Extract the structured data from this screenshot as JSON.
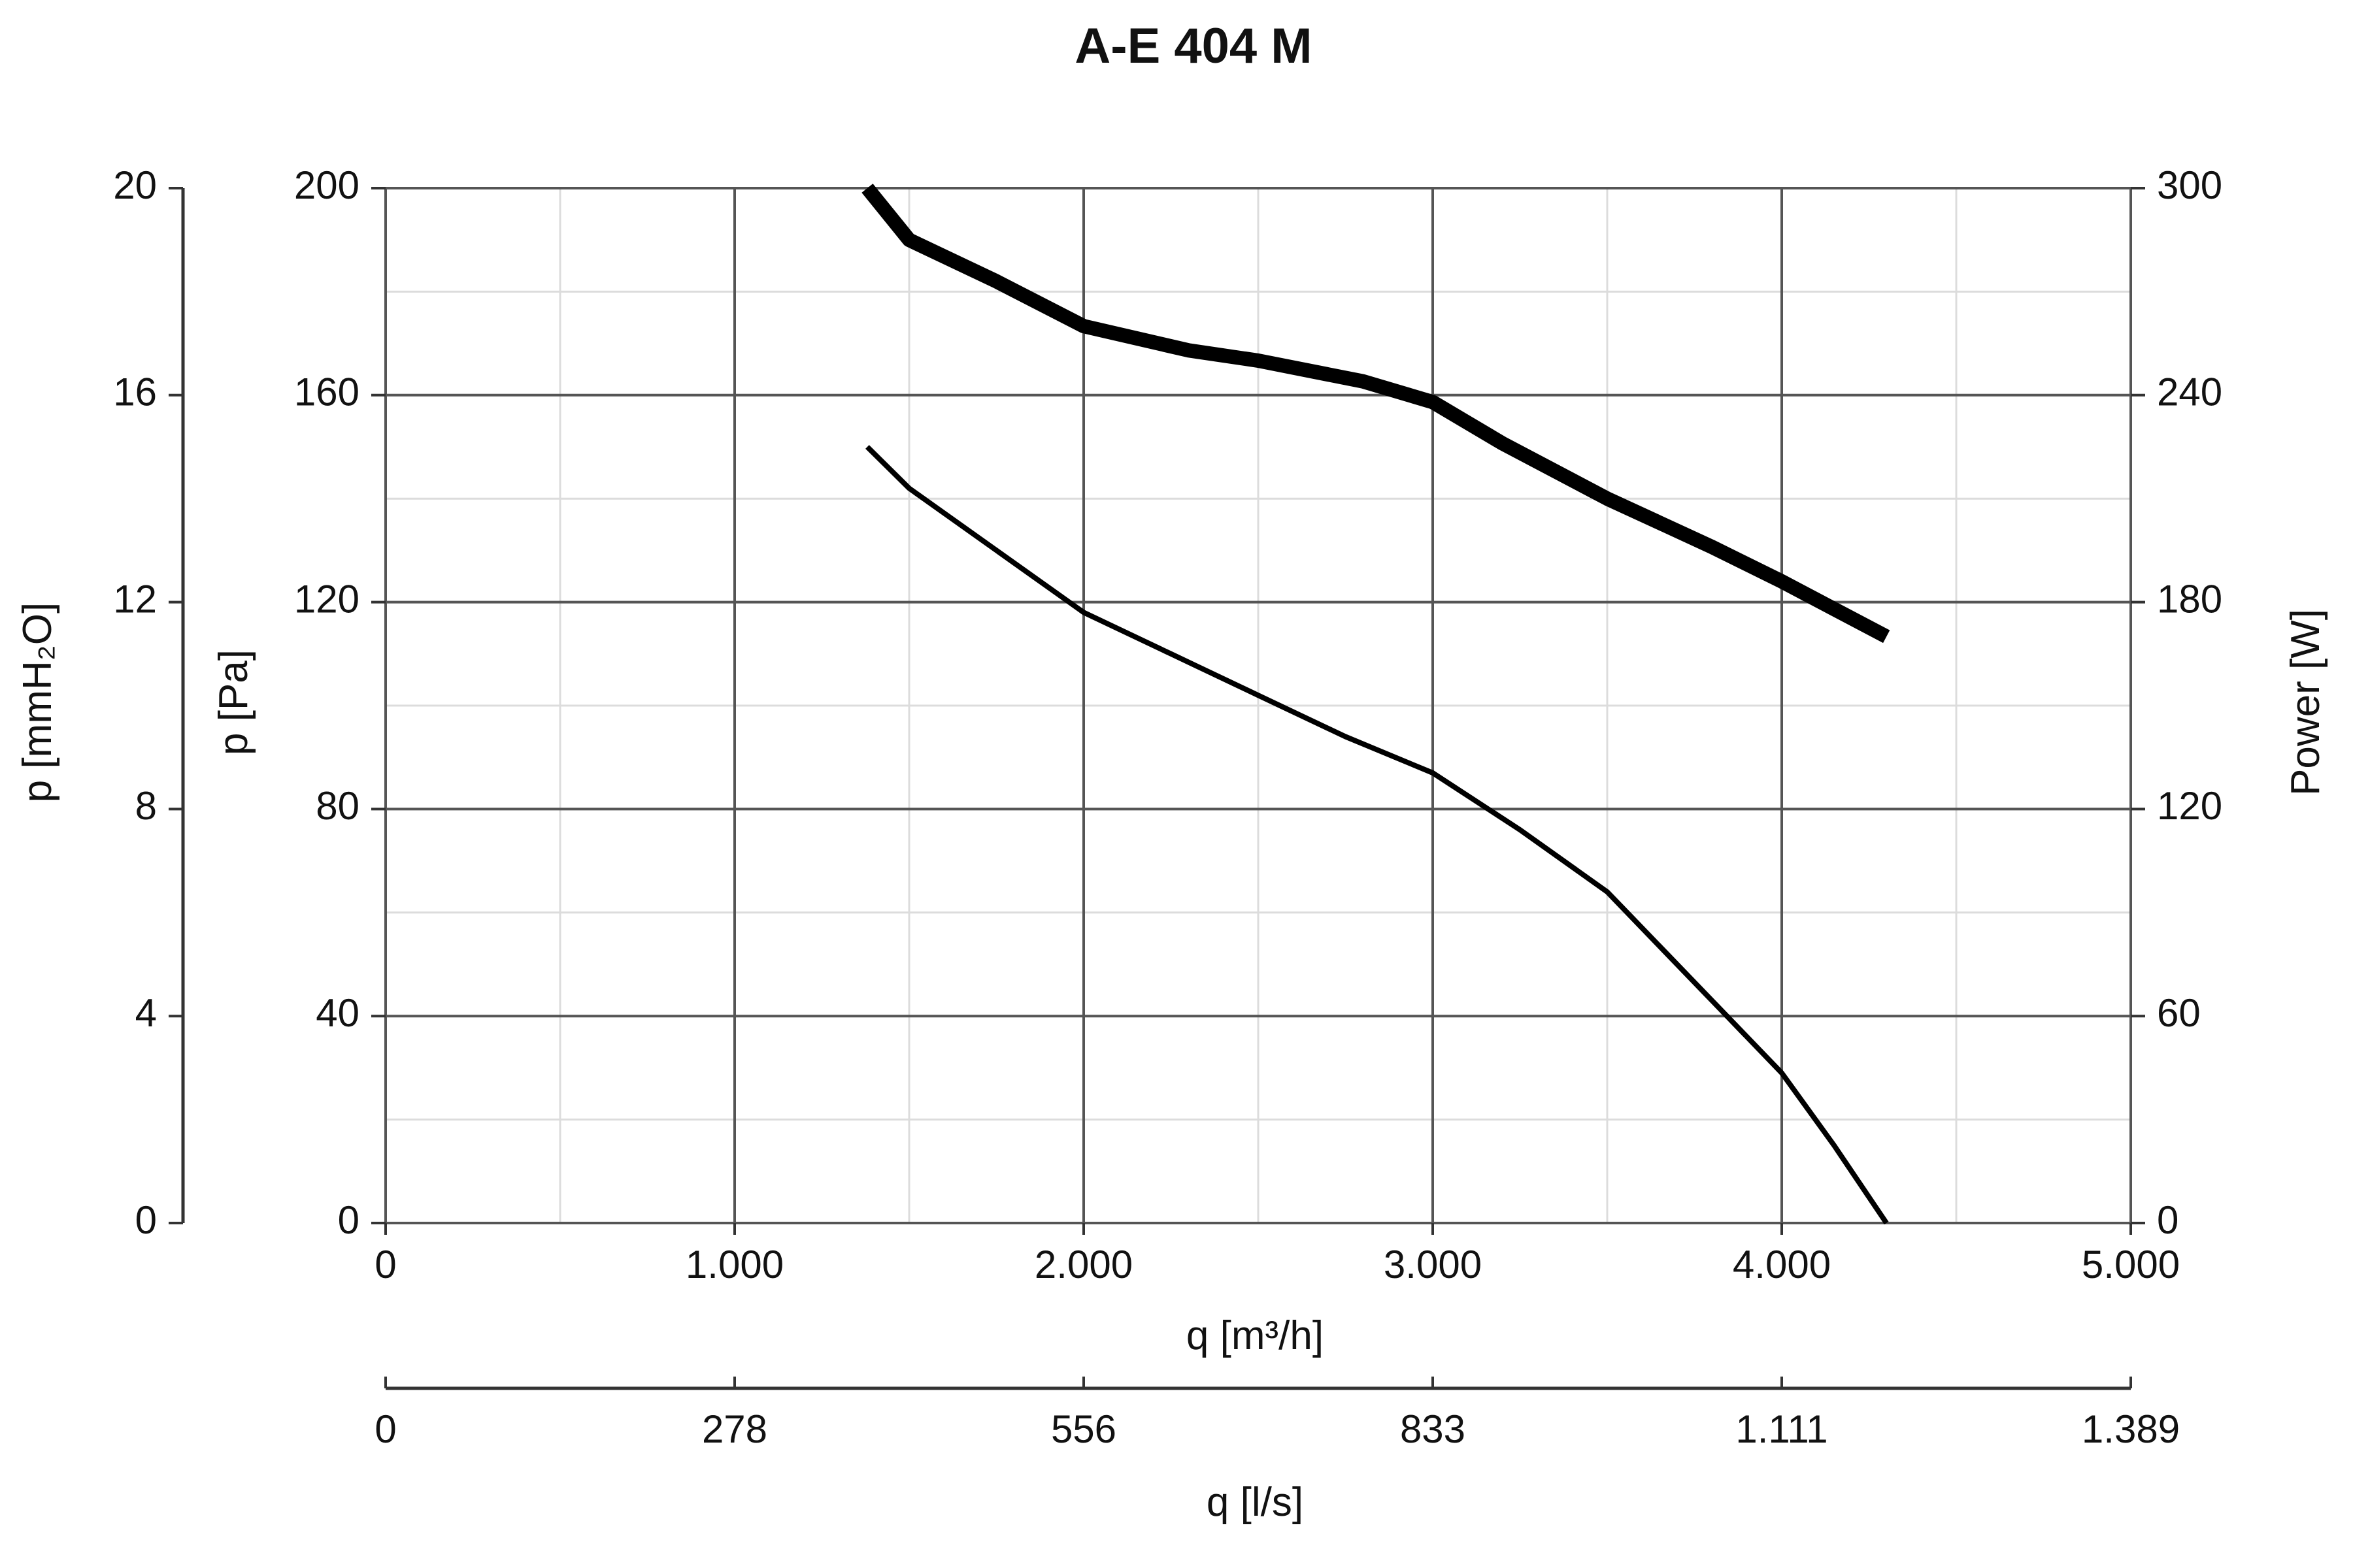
{
  "chart_data": {
    "type": "line",
    "title": "A-E 404 M",
    "x_axis": {
      "label": "q [m³/h]",
      "range": [
        0,
        5000
      ],
      "ticks": [
        0,
        1000,
        2000,
        3000,
        4000,
        5000
      ],
      "tick_labels": [
        "0",
        "1.000",
        "2.000",
        "3.000",
        "4.000",
        "5.000"
      ]
    },
    "x_axis_secondary": {
      "label": "q [l/s]",
      "range": [
        0,
        1389
      ],
      "ticks": [
        0,
        278,
        556,
        833,
        1111,
        1389
      ],
      "tick_labels": [
        "0",
        "278",
        "556",
        "833",
        "1.111",
        "1.389"
      ]
    },
    "y_axis_left": {
      "label": "p [Pa]",
      "range": [
        0,
        200
      ],
      "ticks": [
        0,
        40,
        80,
        120,
        160,
        200
      ],
      "tick_labels": [
        "0",
        "40",
        "80",
        "120",
        "160",
        "200"
      ]
    },
    "y_axis_left_outer": {
      "label": "p [mmH₂O]",
      "range": [
        0,
        20
      ],
      "ticks": [
        0,
        4,
        8,
        12,
        16,
        20
      ],
      "tick_labels": [
        "0",
        "4",
        "8",
        "12",
        "16",
        "20"
      ]
    },
    "y_axis_right": {
      "label": "Power [W]",
      "range": [
        0,
        300
      ],
      "ticks": [
        0,
        60,
        120,
        180,
        240,
        300
      ],
      "tick_labels": [
        "0",
        "60",
        "120",
        "180",
        "240",
        "300"
      ]
    },
    "grid": true,
    "series": [
      {
        "axis": "right",
        "style": "thick",
        "color": "#000000",
        "x": [
          1380,
          1500,
          1750,
          2000,
          2300,
          2500,
          2800,
          3000,
          3200,
          3500,
          3800,
          4000,
          4300
        ],
        "y": [
          300,
          285,
          273,
          260,
          253,
          250,
          244,
          238,
          226,
          210,
          196,
          186,
          170
        ]
      },
      {
        "axis": "left",
        "style": "thin",
        "color": "#000000",
        "x": [
          1380,
          1500,
          1750,
          2000,
          2250,
          2500,
          2750,
          3000,
          3250,
          3500,
          3800,
          4000,
          4150,
          4300
        ],
        "y": [
          150,
          142,
          130,
          118,
          110,
          102,
          94,
          87,
          76,
          64,
          43,
          29,
          15,
          0
        ]
      }
    ],
    "colors": {
      "major_grid": "#555555",
      "minor_grid": "#dcdcdc",
      "axis": "#333333",
      "curve": "#000000"
    }
  }
}
